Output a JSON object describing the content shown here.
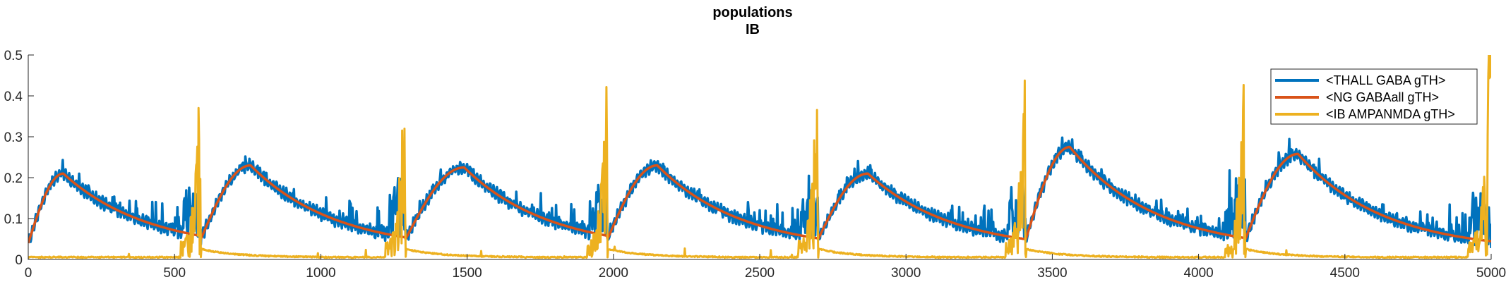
{
  "chart_data": {
    "type": "line",
    "title": [
      "populations",
      "IB"
    ],
    "xlabel": "",
    "ylabel": "",
    "xlim": [
      0,
      5000
    ],
    "ylim": [
      0,
      0.5
    ],
    "xticks": [
      0,
      500,
      1000,
      1500,
      2000,
      2500,
      3000,
      3500,
      4000,
      4500,
      5000
    ],
    "xtick_labels": [
      "0",
      "500",
      "1000",
      "1500",
      "2000",
      "2500",
      "3000",
      "3500",
      "4000",
      "4500",
      "5000"
    ],
    "yticks": [
      0,
      0.1,
      0.2,
      0.3,
      0.4,
      0.5
    ],
    "ytick_labels": [
      "0",
      "0.1",
      "0.2",
      "0.3",
      "0.4",
      "0.5"
    ],
    "grid": false,
    "legend_position": "top-right",
    "cycles": [
      {
        "spike": 590,
        "peak_time": 120,
        "peak": 0.21
      },
      {
        "spike": 1290,
        "peak_time": 760,
        "peak": 0.23
      },
      {
        "spike": 1980,
        "peak_time": 1490,
        "peak": 0.225
      },
      {
        "spike": 2700,
        "peak_time": 2150,
        "peak": 0.23
      },
      {
        "spike": 3410,
        "peak_time": 2870,
        "peak": 0.21
      },
      {
        "spike": 4160,
        "peak_time": 3560,
        "peak": 0.275
      },
      {
        "spike": 4990,
        "peak_time": 4340,
        "peak": 0.258
      }
    ],
    "series": [
      {
        "name": "<THALL GABA gTH>",
        "color": "#0072BD",
        "shape": "slow decay with fast spiky ripples"
      },
      {
        "name": "<NG GABAall gTH>",
        "color": "#D95319",
        "shape": "smooth rise and exponential decay after each burst"
      },
      {
        "name": "<IB AMPANMDA gTH>",
        "color": "#EDB120",
        "shape": "near zero with bursts reaching above 0.5"
      }
    ]
  }
}
